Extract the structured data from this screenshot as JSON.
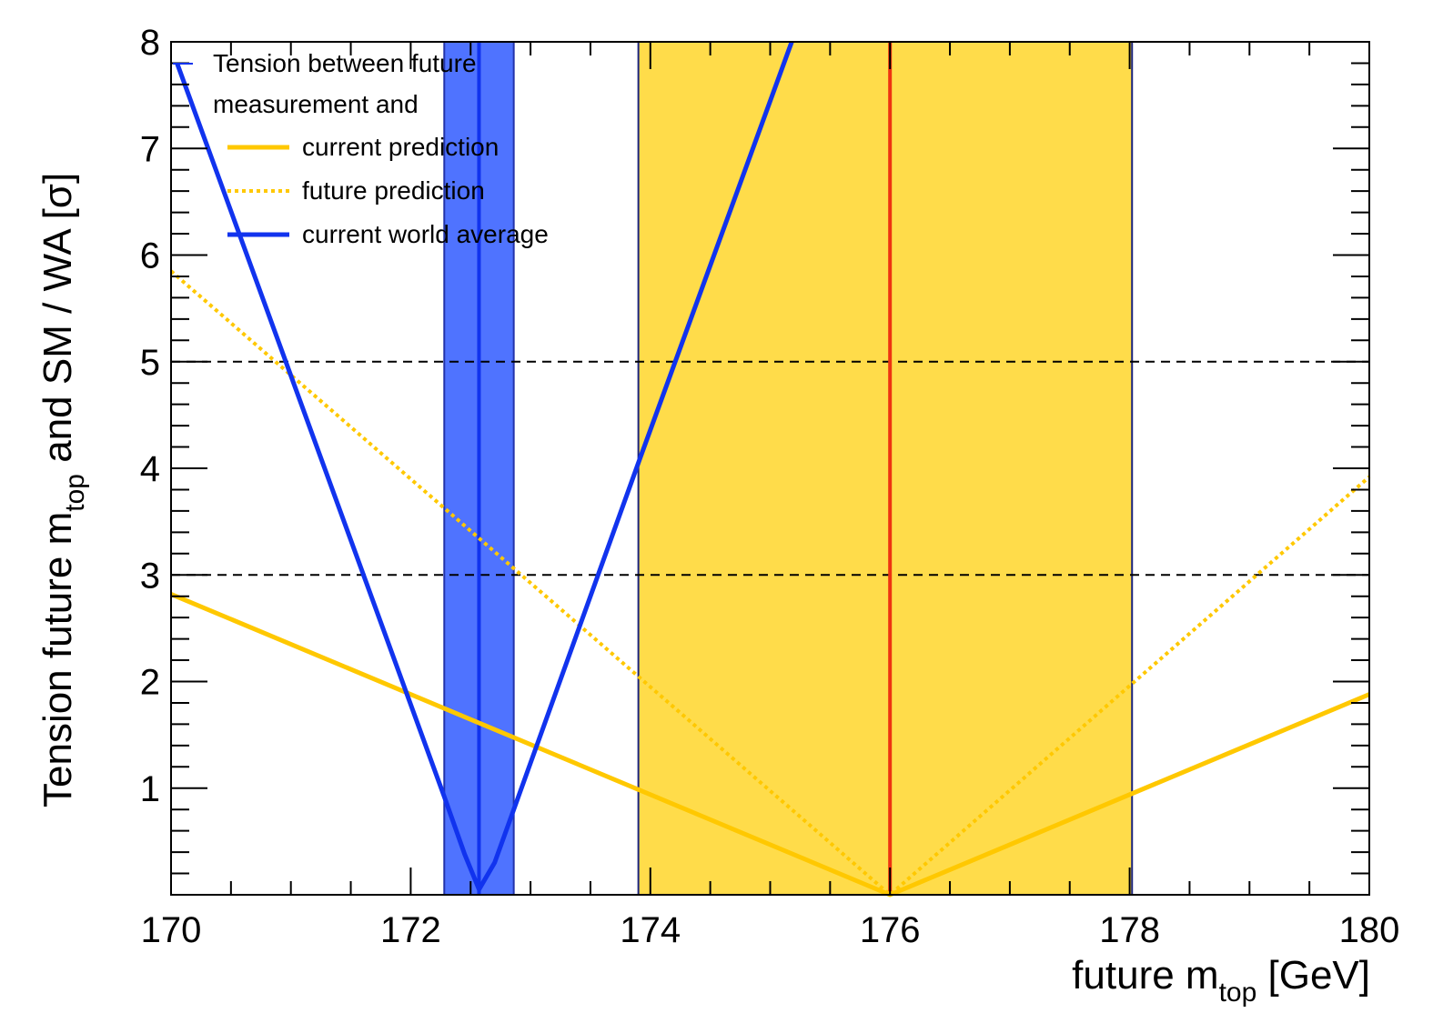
{
  "chart_data": {
    "type": "line",
    "xlabel": {
      "main": "future m",
      "sub": "top",
      "unit": " [GeV]"
    },
    "ylabel": {
      "pre": "Tension future m",
      "sub": "top",
      "post": " and SM / WA [σ]"
    },
    "xlim": [
      170,
      180
    ],
    "ylim": [
      0,
      8
    ],
    "xticks": [
      170,
      172,
      174,
      176,
      178,
      180
    ],
    "yticks": [
      1,
      2,
      3,
      4,
      5,
      6,
      7,
      8
    ],
    "x_minor_step": 0.5,
    "y_minor_step": 0.2,
    "grid": false,
    "reference_lines": [
      {
        "name": "3-sigma",
        "y": 3,
        "style": "dashed",
        "color": "#000000"
      },
      {
        "name": "5-sigma",
        "y": 5,
        "style": "dashed",
        "color": "#000000"
      }
    ],
    "bands": [
      {
        "name": "world-average-band",
        "x": [
          172.28,
          172.86
        ],
        "fill": "#4f73ff",
        "edge": "#2233aa"
      },
      {
        "name": "prediction-band",
        "x": [
          173.9,
          178.02
        ],
        "fill": "#ffdc4a",
        "edge": "#1a237e"
      }
    ],
    "vertical_lines": [
      {
        "name": "world-average-central",
        "x": 172.57,
        "color": "#1133ee",
        "width": 4
      },
      {
        "name": "prediction-central",
        "x": 176.0,
        "color": "#ee3311",
        "width": 4
      }
    ],
    "series": [
      {
        "name": "current prediction",
        "style": "solid",
        "color": "#ffc800",
        "width": 5,
        "x": [
          170.0,
          176.0,
          180.0
        ],
        "y": [
          2.82,
          0.0,
          1.88
        ]
      },
      {
        "name": "future prediction",
        "style": "dotted",
        "color": "#ffc800",
        "width": 4,
        "x": [
          170.0,
          176.0,
          180.0
        ],
        "y": [
          5.85,
          0.0,
          3.92
        ]
      },
      {
        "name": "current world average",
        "style": "solid",
        "color": "#1133ee",
        "width": 5,
        "x": [
          170.05,
          172.28,
          172.45,
          172.57,
          172.7,
          172.86,
          173.9,
          175.18
        ],
        "y": [
          7.8,
          0.92,
          0.38,
          0.05,
          0.3,
          0.8,
          4.05,
          8.0
        ]
      }
    ],
    "legend": {
      "position": "top-left",
      "header": [
        "Tension between future",
        "measurement and"
      ],
      "entries": [
        {
          "label": "current prediction",
          "color": "#ffc800",
          "style": "solid"
        },
        {
          "label": "future prediction",
          "color": "#ffc800",
          "style": "dotted"
        },
        {
          "label": "current world average",
          "color": "#1133ee",
          "style": "solid"
        }
      ]
    }
  }
}
